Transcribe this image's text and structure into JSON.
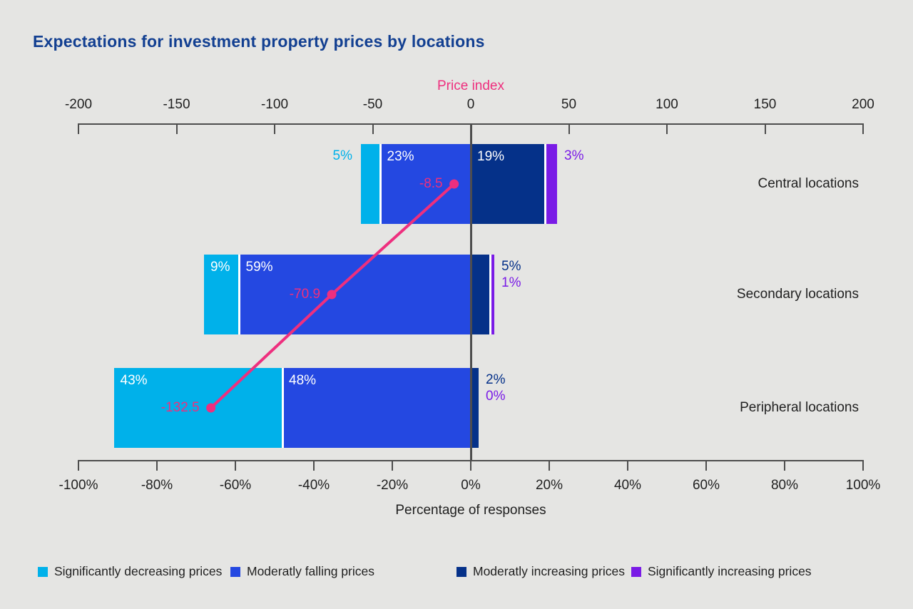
{
  "title": "Expectations for investment property prices by locations",
  "colors": {
    "background": "#e5e5e3",
    "title": "#123f91",
    "axis": "#4d4d4d",
    "text": "#1f1f1f",
    "separator": "#ffffff",
    "inside_label": "#ffffff"
  },
  "chart_data": {
    "type": "bar",
    "subtype": "diverging-stacked-horizontal-with-line",
    "title": "Expectations for investment property prices by locations",
    "categories": [
      "Central locations",
      "Secondary locations",
      "Peripheral locations"
    ],
    "series": [
      {
        "name": "Significantly decreasing prices",
        "color": "#00b1ea",
        "side": "negative",
        "values": [
          5,
          9,
          43
        ]
      },
      {
        "name": "Moderatly falling prices",
        "color": "#2448e1",
        "side": "negative",
        "values": [
          23,
          59,
          48
        ]
      },
      {
        "name": "Moderatly increasing prices",
        "color": "#053189",
        "side": "positive",
        "values": [
          19,
          5,
          2
        ]
      },
      {
        "name": "Significantly increasing prices",
        "color": "#7a1be6",
        "side": "positive",
        "values": [
          3,
          1,
          0
        ]
      }
    ],
    "value_labels": [
      [
        "5%",
        "23%",
        "19%",
        "3%"
      ],
      [
        "9%",
        "59%",
        "5%",
        "1%"
      ],
      [
        "43%",
        "48%",
        "2%",
        "0%"
      ]
    ],
    "line_series": {
      "name": "Price index",
      "color": "#ee2f7e",
      "values": [
        -8.5,
        -70.9,
        -132.5
      ],
      "labels": [
        "-8.5",
        "-70.9",
        "-132.5"
      ]
    },
    "top_axis": {
      "label": "Price index",
      "label_color": "#ee2f7e",
      "range": [
        -200,
        200
      ],
      "ticks": [
        -200,
        -150,
        -100,
        -50,
        0,
        50,
        100,
        150,
        200
      ],
      "tick_labels": [
        "-200",
        "-150",
        "-100",
        "-50",
        "0",
        "50",
        "100",
        "150",
        "200"
      ]
    },
    "bottom_axis": {
      "label": "Percentage of responses",
      "range": [
        -100,
        100
      ],
      "ticks": [
        -100,
        -80,
        -60,
        -40,
        -20,
        0,
        20,
        40,
        60,
        80,
        100
      ],
      "tick_labels": [
        "-100%",
        "-80%",
        "-60%",
        "-40%",
        "-20%",
        "0%",
        "20%",
        "40%",
        "60%",
        "80%",
        "100%"
      ]
    },
    "legend_position": "bottom",
    "grid": false
  },
  "legend": {
    "items": [
      {
        "label": "Significantly decreasing prices",
        "color": "#00b1ea"
      },
      {
        "label": "Moderatly falling prices",
        "color": "#2448e1"
      },
      {
        "label": "Moderatly increasing prices",
        "color": "#053189"
      },
      {
        "label": "Significantly increasing prices",
        "color": "#7a1be6"
      }
    ]
  }
}
